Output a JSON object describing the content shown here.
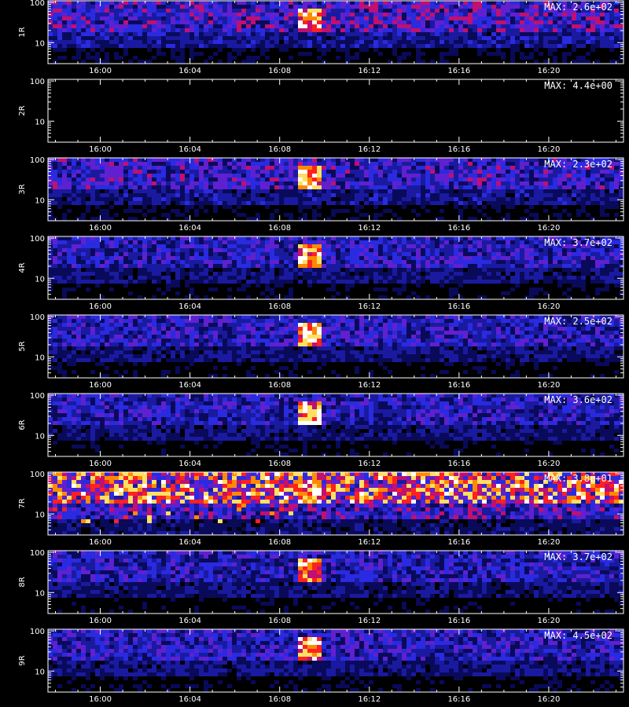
{
  "chart_data": {
    "type": "heatmap",
    "colormap": [
      "#000000",
      "#0a0a5a",
      "#1a1aa0",
      "#2a2ae0",
      "#6020d0",
      "#c01070",
      "#ff2020",
      "#ff8a00",
      "#ffe060",
      "#ffffff"
    ],
    "x_range": [
      "15:57:40",
      "16:23:20"
    ],
    "x_ticks": [
      "16:00",
      "16:04",
      "16:08",
      "16:12",
      "16:16",
      "16:20"
    ],
    "y_scale": "log",
    "y_range": [
      3,
      110
    ],
    "y_tick_labels": [
      "100",
      "10"
    ],
    "burst": {
      "start": "16:09:00",
      "end": "16:09:40",
      "y_range": [
        20,
        70
      ]
    },
    "panels": [
      {
        "label": "1R",
        "max_label": "MAX: 2.6e+02",
        "level": 0.45
      },
      {
        "label": "2R",
        "max_label": "MAX: 4.4e+00",
        "level": 0.0
      },
      {
        "label": "3R",
        "max_label": "MAX: 2.3e+02",
        "level": 0.42
      },
      {
        "label": "4R",
        "max_label": "MAX: 3.7e+02",
        "level": 0.38
      },
      {
        "label": "5R",
        "max_label": "MAX: 2.5e+02",
        "level": 0.38
      },
      {
        "label": "6R",
        "max_label": "MAX: 3.6e+02",
        "level": 0.36
      },
      {
        "label": "7R",
        "max_label": "MAX: 3.8e+01",
        "level": 0.75
      },
      {
        "label": "8R",
        "max_label": "MAX: 3.7e+02",
        "level": 0.36
      },
      {
        "label": "9R",
        "max_label": "MAX: 4.5e+02",
        "level": 0.38
      }
    ]
  }
}
